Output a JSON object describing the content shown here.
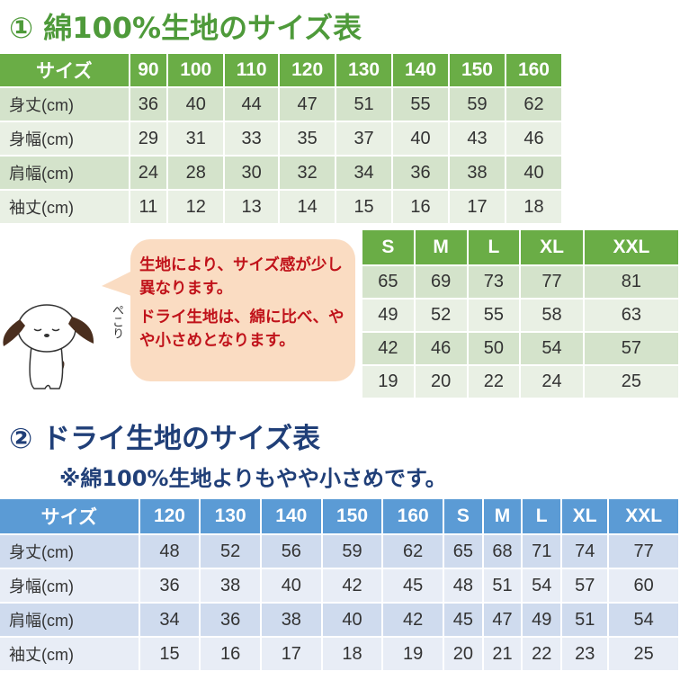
{
  "section1": {
    "title": "① 綿100%生地のサイズ表",
    "headers": [
      "サイズ",
      "90",
      "100",
      "110",
      "120",
      "130",
      "140",
      "150",
      "160"
    ],
    "rows": [
      [
        "身丈(cm)",
        "36",
        "40",
        "44",
        "47",
        "51",
        "55",
        "59",
        "62"
      ],
      [
        "身幅(cm)",
        "29",
        "31",
        "33",
        "35",
        "37",
        "40",
        "43",
        "46"
      ],
      [
        "肩幅(cm)",
        "24",
        "28",
        "30",
        "32",
        "34",
        "36",
        "38",
        "40"
      ],
      [
        "袖丈(cm)",
        "11",
        "12",
        "13",
        "14",
        "15",
        "16",
        "17",
        "18"
      ]
    ],
    "adult_headers": [
      "S",
      "M",
      "L",
      "XL",
      "XXL"
    ],
    "adult_rows": [
      [
        "65",
        "69",
        "73",
        "77",
        "81"
      ],
      [
        "49",
        "52",
        "55",
        "58",
        "63"
      ],
      [
        "42",
        "46",
        "50",
        "54",
        "57"
      ],
      [
        "19",
        "20",
        "22",
        "24",
        "25"
      ]
    ]
  },
  "note": {
    "line1": "生地により、サイズ感が少し異なります。",
    "line2": "ドライ生地は、綿に比べ、やや小さめとなります。",
    "dog_text": "ぺこり"
  },
  "section2": {
    "title": "② ドライ生地のサイズ表",
    "subtitle": "※綿100%生地よりもやや小さめです。",
    "headers": [
      "サイズ",
      "120",
      "130",
      "140",
      "150",
      "160",
      "S",
      "M",
      "L",
      "XL",
      "XXL"
    ],
    "rows": [
      [
        "身丈(cm)",
        "48",
        "52",
        "56",
        "59",
        "62",
        "65",
        "68",
        "71",
        "74",
        "77"
      ],
      [
        "身幅(cm)",
        "36",
        "38",
        "40",
        "42",
        "45",
        "48",
        "51",
        "54",
        "57",
        "60"
      ],
      [
        "肩幅(cm)",
        "34",
        "36",
        "38",
        "40",
        "42",
        "45",
        "47",
        "49",
        "51",
        "54"
      ],
      [
        "袖丈(cm)",
        "15",
        "16",
        "17",
        "18",
        "19",
        "20",
        "21",
        "22",
        "23",
        "25"
      ]
    ]
  },
  "colors": {
    "green_header": "#6aad46",
    "blue_header": "#5b9bd5",
    "note_text": "#c0121a",
    "bubble": "#fadcc2"
  }
}
